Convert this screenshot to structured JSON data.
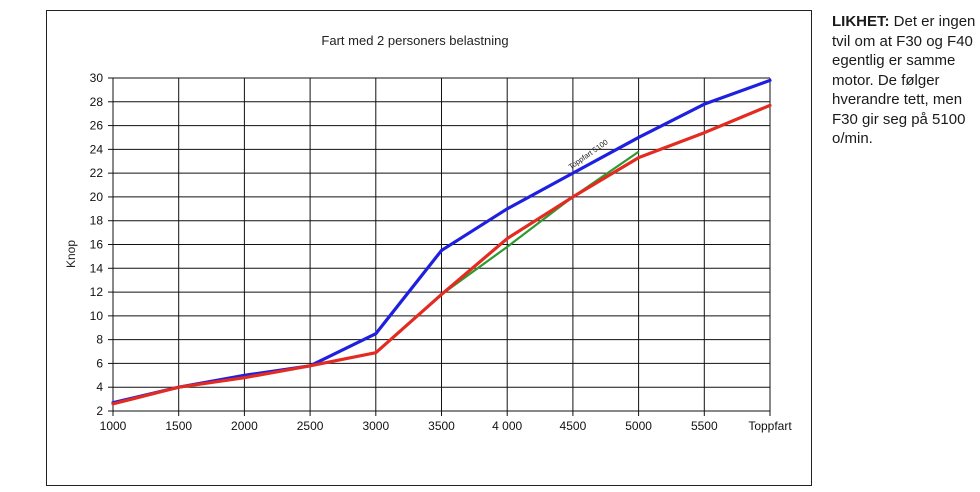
{
  "side_text": {
    "lead": "LIKHET:",
    "body": " Det er ingen tvil om at F30 og F40 egentlig er samme motor. De følger hverandre tett, men F30 gir seg på 5100 o/min."
  },
  "chart_data": {
    "type": "line",
    "title": "Fart med 2 personers belastning",
    "xlabel": "",
    "ylabel": "Knop",
    "categories": [
      "1000",
      "1500",
      "2000",
      "2500",
      "3000",
      "3500",
      "4 000",
      "4500",
      "5000",
      "5500",
      "Toppfart"
    ],
    "ylim": [
      2,
      30
    ],
    "yticks": [
      2,
      4,
      6,
      8,
      10,
      12,
      14,
      16,
      18,
      20,
      22,
      24,
      26,
      28,
      30
    ],
    "grid": true,
    "series": [
      {
        "values": [
          2.7,
          4.0,
          5.0,
          5.8,
          8.5,
          15.5,
          19.0,
          22.0,
          25.0,
          27.8,
          29.8
        ],
        "color": "#1f1fe0"
      },
      {
        "values": [
          2.6,
          4.0,
          4.8,
          5.8,
          6.9,
          11.8,
          16.5,
          20.0,
          23.3,
          25.4,
          27.7
        ],
        "color": "#e32b22"
      }
    ],
    "green_segment": {
      "x": [
        "3500",
        "4 000",
        "4500",
        "5000"
      ],
      "values": [
        11.8,
        15.8,
        20.0,
        23.8
      ],
      "color": "#2e9a2e"
    },
    "annotation": {
      "text": "Toppfart 5100",
      "x": "4500",
      "y": 22.3
    }
  }
}
